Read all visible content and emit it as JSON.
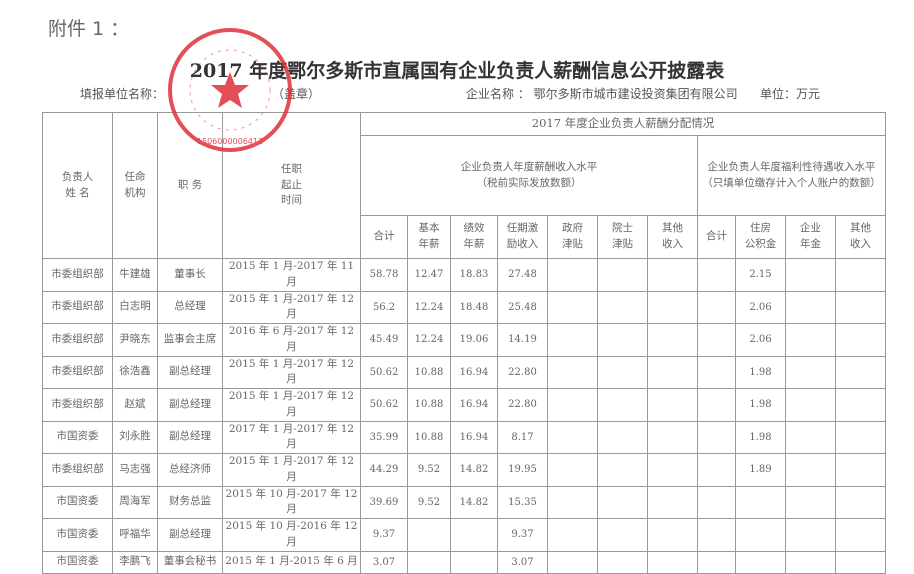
{
  "attachment": "附件 1 ：",
  "title": "2017 年度鄂尔多斯市直属国有企业负责人薪酬信息公开披露表",
  "filler_label": "填报单位名称：",
  "seal_note": "（盖章）",
  "company_label": "企业名称 ：",
  "company_name": "鄂尔多斯市城市建设投资集团有限公司",
  "unit": "单位：万元",
  "stamp": {
    "number": "1506000006412",
    "color": "#e0303a"
  },
  "headers": {
    "name": "负责人\n姓 名",
    "org": "任命\n机构",
    "position": "职 务",
    "term": "任职\n起止\n时间",
    "group": "2017 年度企业负责人薪酬分配情况",
    "salary_group": "企业负责人年度薪酬收入水平",
    "salary_note": "（税前实际发放数额）",
    "welfare_group": "企业负责人年度福利性待遇收入水平",
    "welfare_note": "（只填单位缴存计入个人账户的数额）",
    "salary_cols": [
      "合计",
      "基本\n年薪",
      "绩效\n年薪",
      "任期激\n励收入",
      "政府\n津贴",
      "院士\n津贴",
      "其他\n收入"
    ],
    "welfare_cols": [
      "合计",
      "住房\n公积金",
      "企业\n年金",
      "其他\n收入"
    ]
  },
  "rows": [
    [
      "市委组织部",
      "牛建雄",
      "董事长",
      "2015 年 1 月-2017 年 11 月",
      "58.78",
      "12.47",
      "18.83",
      "27.48",
      "",
      "",
      "",
      "",
      "2.15",
      "",
      ""
    ],
    [
      "市委组织部",
      "白志明",
      "总经理",
      "2015 年 1 月-2017 年 12 月",
      "56.2",
      "12.24",
      "18.48",
      "25.48",
      "",
      "",
      "",
      "",
      "2.06",
      "",
      ""
    ],
    [
      "市委组织部",
      "尹晓东",
      "监事会主席",
      "2016 年 6 月-2017 年 12 月",
      "45.49",
      "12.24",
      "19.06",
      "14.19",
      "",
      "",
      "",
      "",
      "2.06",
      "",
      ""
    ],
    [
      "市委组织部",
      "徐浩鑫",
      "副总经理",
      "2015 年 1 月-2017 年 12 月",
      "50.62",
      "10.88",
      "16.94",
      "22.80",
      "",
      "",
      "",
      "",
      "1.98",
      "",
      ""
    ],
    [
      "市委组织部",
      "赵斌",
      "副总经理",
      "2015 年 1 月-2017 年 12 月",
      "50.62",
      "10.88",
      "16.94",
      "22.80",
      "",
      "",
      "",
      "",
      "1.98",
      "",
      ""
    ],
    [
      "市国资委",
      "刘永胜",
      "副总经理",
      "2017 年 1 月-2017 年 12 月",
      "35.99",
      "10.88",
      "16.94",
      "8.17",
      "",
      "",
      "",
      "",
      "1.98",
      "",
      ""
    ],
    [
      "市委组织部",
      "马志强",
      "总经济师",
      "2015 年 1 月-2017 年 12 月",
      "44.29",
      "9.52",
      "14.82",
      "19.95",
      "",
      "",
      "",
      "",
      "1.89",
      "",
      ""
    ],
    [
      "市国资委",
      "周海军",
      "财务总监",
      "2015 年 10 月-2017 年 12 月",
      "39.69",
      "9.52",
      "14.82",
      "15.35",
      "",
      "",
      "",
      "",
      "",
      "",
      ""
    ],
    [
      "市国资委",
      "呼福华",
      "副总经理",
      "2015 年 10 月-2016 年 12 月",
      "9.37",
      "",
      "",
      "9.37",
      "",
      "",
      "",
      "",
      "",
      "",
      ""
    ],
    [
      "市国资委",
      "李鹏飞",
      "董事会秘书",
      "2015 年 1 月-2015 年 6 月",
      "3.07",
      "",
      "",
      "3.07",
      "",
      "",
      "",
      "",
      "",
      "",
      ""
    ]
  ]
}
